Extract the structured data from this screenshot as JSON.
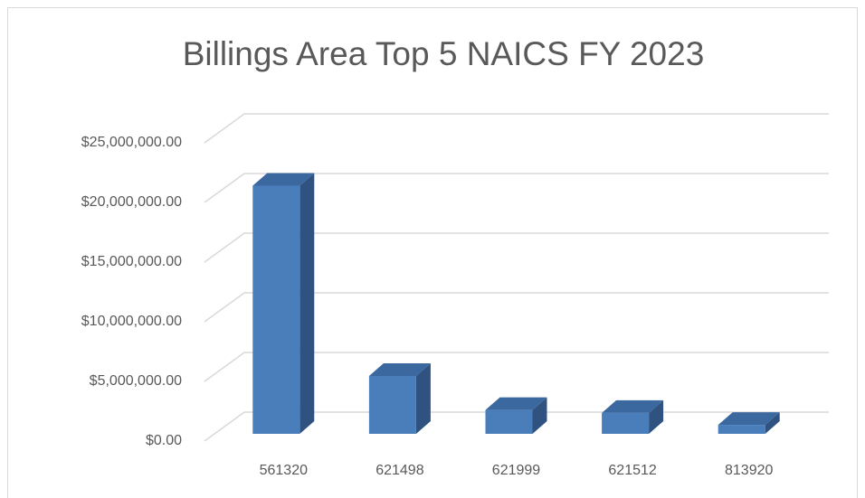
{
  "chart_data": {
    "type": "bar3d",
    "title": "Billings Area Top 5 NAICS FY 2023",
    "categories": [
      "561320",
      "621498",
      "621999",
      "621512",
      "813920"
    ],
    "values": [
      20800000,
      4850000,
      2000000,
      1750000,
      750000
    ],
    "color": "#4a7ebb",
    "ylim": [
      0,
      25000000
    ],
    "yticks": [
      {
        "value": 0,
        "label": "$0.00"
      },
      {
        "value": 5000000,
        "label": "$5,000,000.00"
      },
      {
        "value": 10000000,
        "label": "$10,000,000.00"
      },
      {
        "value": 15000000,
        "label": "$15,000,000.00"
      },
      {
        "value": 20000000,
        "label": "$20,000,000.00"
      },
      {
        "value": 25000000,
        "label": "$25,000,000.00"
      }
    ],
    "grid": true
  }
}
